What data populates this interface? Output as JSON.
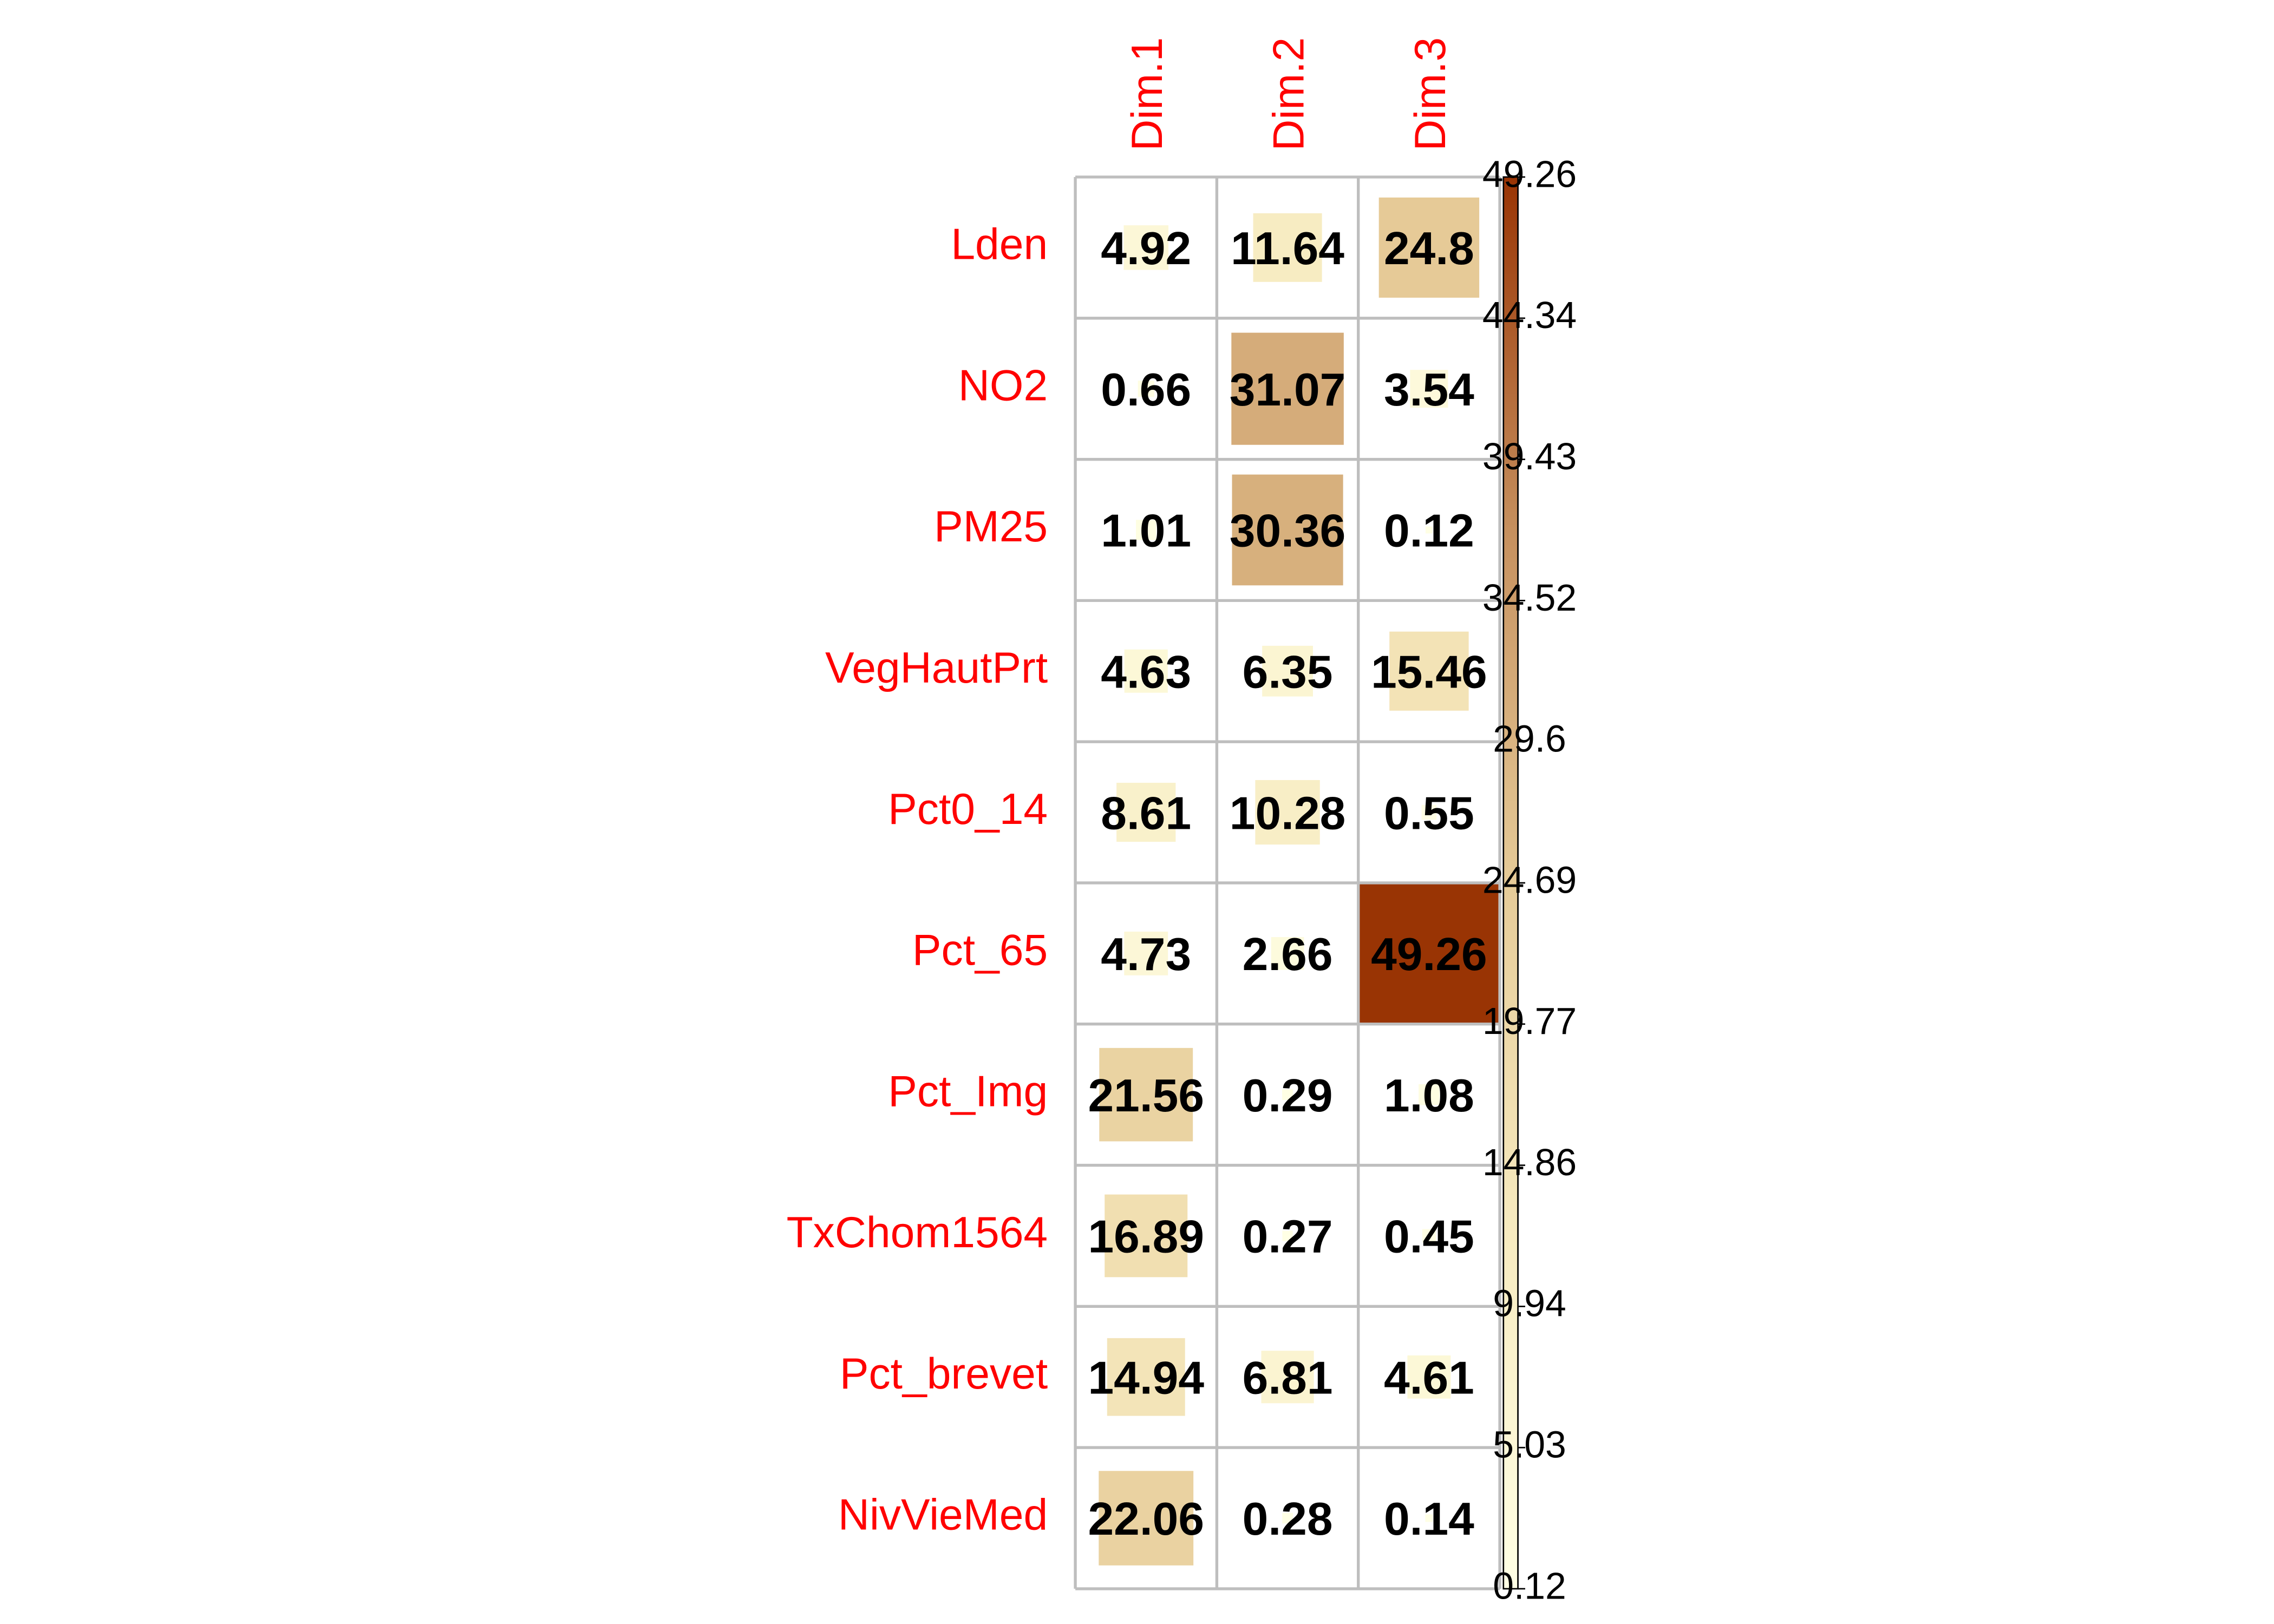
{
  "chart_data": {
    "type": "heatmap",
    "rows": [
      "Lden",
      "NO2",
      "PM25",
      "VegHautPrt",
      "Pct0_14",
      "Pct_65",
      "Pct_Img",
      "TxChom1564",
      "Pct_brevet",
      "NivVieMed"
    ],
    "columns": [
      "Dim.1",
      "Dim.2",
      "Dim.3"
    ],
    "values": [
      [
        4.92,
        11.64,
        24.8
      ],
      [
        0.66,
        31.07,
        3.54
      ],
      [
        1.01,
        30.36,
        0.12
      ],
      [
        4.63,
        6.35,
        15.46
      ],
      [
        8.61,
        10.28,
        0.55
      ],
      [
        4.73,
        2.66,
        49.26
      ],
      [
        21.56,
        0.29,
        1.08
      ],
      [
        16.89,
        0.27,
        0.45
      ],
      [
        14.94,
        6.81,
        4.61
      ],
      [
        22.06,
        0.28,
        0.14
      ]
    ],
    "cell_labels": [
      [
        "4.92",
        "11.64",
        "24.8"
      ],
      [
        "0.66",
        "31.07",
        "3.54"
      ],
      [
        "1.01",
        "30.36",
        "0.12"
      ],
      [
        "4.63",
        "6.35",
        "15.46"
      ],
      [
        "8.61",
        "10.28",
        "0.55"
      ],
      [
        "4.73",
        "2.66",
        "49.26"
      ],
      [
        "21.56",
        "0.29",
        "1.08"
      ],
      [
        "16.89",
        "0.27",
        "0.45"
      ],
      [
        "14.94",
        "6.81",
        "4.61"
      ],
      [
        "22.06",
        "0.28",
        "0.14"
      ]
    ],
    "color_scale": {
      "min": 0.12,
      "max": 49.26,
      "colors": [
        "#FFFFE5",
        "#F7EBC0",
        "#E6CB98",
        "#C6905E",
        "#993404"
      ],
      "ticks": [
        "49.26",
        "44.34",
        "39.43",
        "34.52",
        "29.6",
        "24.69",
        "19.77",
        "14.86",
        "9.94",
        "5.03",
        "0.12"
      ]
    },
    "label_color": "#FF0000",
    "grid_color": "#BEBEBE",
    "legend_position": "right"
  }
}
